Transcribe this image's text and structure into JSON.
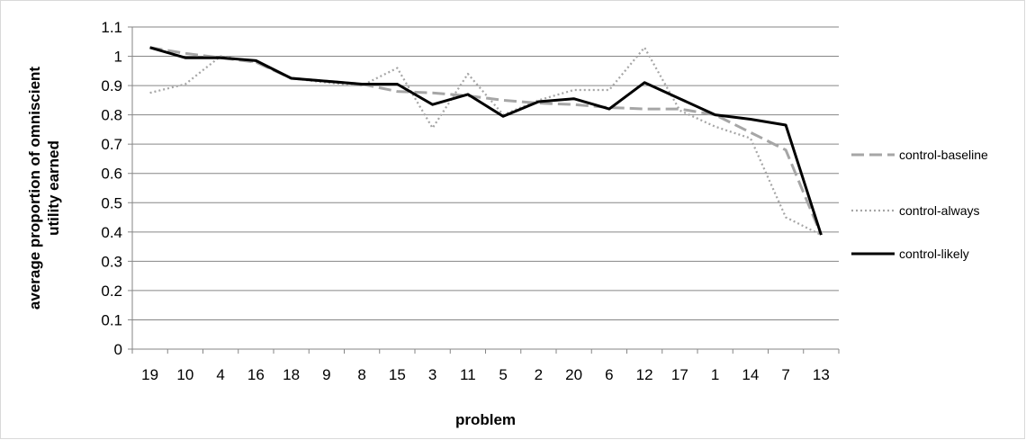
{
  "chart_data": {
    "type": "line",
    "xlabel": "problem",
    "ylabel": "average proportion of omniscient utility earned",
    "categories": [
      "19",
      "10",
      "4",
      "16",
      "18",
      "9",
      "8",
      "15",
      "3",
      "11",
      "5",
      "2",
      "20",
      "6",
      "12",
      "17",
      "1",
      "14",
      "7",
      "13"
    ],
    "ylim": [
      0,
      1.1
    ],
    "yticks": [
      "0",
      "0.1",
      "0.2",
      "0.3",
      "0.4",
      "0.5",
      "0.6",
      "0.7",
      "0.8",
      "0.9",
      "1",
      "1.1"
    ],
    "grid": true,
    "legend": "right",
    "series": [
      {
        "name": "control-baseline",
        "color": "#a6a6a6",
        "style": "dash",
        "values": [
          1.03,
          1.01,
          0.995,
          0.98,
          0.925,
          0.915,
          0.905,
          0.88,
          0.875,
          0.865,
          0.85,
          0.84,
          0.835,
          0.825,
          0.82,
          0.82,
          0.8,
          0.74,
          0.68,
          0.39
        ]
      },
      {
        "name": "control-always",
        "color": "#a6a6a6",
        "style": "dot",
        "values": [
          0.875,
          0.905,
          1.0,
          0.98,
          0.925,
          0.91,
          0.9,
          0.96,
          0.755,
          0.94,
          0.8,
          0.85,
          0.885,
          0.885,
          1.03,
          0.815,
          0.76,
          0.72,
          0.45,
          0.39
        ]
      },
      {
        "name": "control-likely",
        "color": "#000000",
        "style": "solid",
        "values": [
          1.03,
          0.995,
          0.995,
          0.985,
          0.925,
          0.915,
          0.905,
          0.905,
          0.835,
          0.87,
          0.795,
          0.845,
          0.855,
          0.82,
          0.91,
          0.855,
          0.8,
          0.785,
          0.765,
          0.39
        ]
      }
    ]
  }
}
